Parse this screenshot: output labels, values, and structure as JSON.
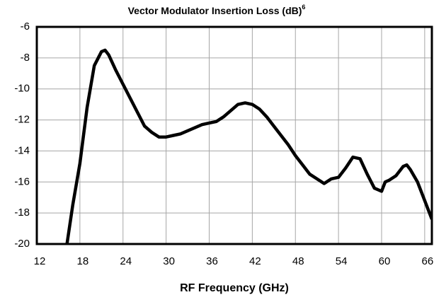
{
  "chart_data": {
    "type": "line",
    "title": "Vector Modulator Insertion Loss (dB)",
    "title_superscript": "6",
    "x_label": "RF Frequency (GHz)",
    "x": [
      16.2,
      17,
      18,
      19,
      20,
      21,
      21.5,
      22,
      23,
      24,
      25,
      26,
      27,
      28,
      29,
      30,
      31,
      32,
      33,
      34,
      35,
      36,
      37,
      38,
      39,
      40,
      41,
      42,
      43,
      44,
      45,
      46,
      47,
      48,
      49,
      50,
      51,
      52,
      53,
      54,
      55,
      56,
      57,
      58,
      59,
      60,
      60.5,
      61,
      62,
      63,
      63.5,
      64,
      65,
      66,
      67
    ],
    "series": [
      {
        "name": "Insertion Loss",
        "color": "#000000",
        "values": [
          -20,
          -17.5,
          -14.8,
          -11.2,
          -8.5,
          -7.6,
          -7.5,
          -7.8,
          -8.8,
          -9.7,
          -10.6,
          -11.5,
          -12.4,
          -12.8,
          -13.1,
          -13.1,
          -13.0,
          -12.9,
          -12.7,
          -12.5,
          -12.3,
          -12.2,
          -12.1,
          -11.8,
          -11.4,
          -11.0,
          -10.9,
          -11.0,
          -11.3,
          -11.8,
          -12.4,
          -13.0,
          -13.6,
          -14.3,
          -14.9,
          -15.5,
          -15.8,
          -16.1,
          -15.8,
          -15.7,
          -15.1,
          -14.4,
          -14.5,
          -15.5,
          -16.4,
          -16.6,
          -16.0,
          -15.9,
          -15.6,
          -15.0,
          -14.9,
          -15.2,
          -16.0,
          -17.2,
          -18.4
        ]
      }
    ],
    "xlim": [
      12,
      67
    ],
    "xticks": [
      12,
      18,
      24,
      30,
      36,
      42,
      48,
      54,
      60,
      66
    ],
    "ylim": [
      -20,
      -6
    ],
    "yticks": [
      -20,
      -18,
      -16,
      -14,
      -12,
      -10,
      -8,
      -6
    ],
    "grid": true
  }
}
